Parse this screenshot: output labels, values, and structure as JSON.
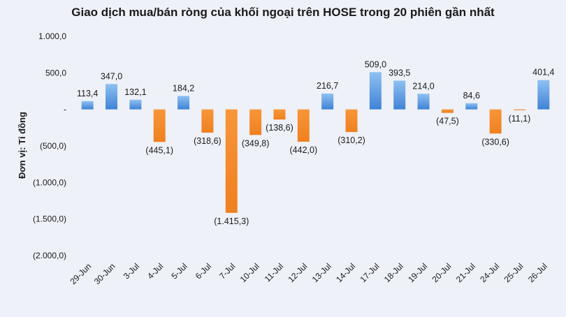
{
  "chart_data": {
    "type": "bar",
    "title": "Giao dịch mua/bán ròng của khối ngoại trên HOSE trong 20 phiên gần nhất",
    "ylabel": "Đơn vị: Tỉ đồng",
    "xlabel": "",
    "ylim": [
      -2000,
      1000
    ],
    "yticks": [
      1000,
      500,
      0,
      -500,
      -1000,
      -1500,
      -2000
    ],
    "ytick_labels": [
      "1.000,0",
      "500,0",
      "-",
      "(500,0)",
      "(1.000,0)",
      "(1.500,0)",
      "(2.000,0)"
    ],
    "grid": false,
    "legend": "none",
    "categories": [
      "29-Jun",
      "30-Jun",
      "3-Jul",
      "4-Jul",
      "5-Jul",
      "6-Jul",
      "7-Jul",
      "10-Jul",
      "11-Jul",
      "12-Jul",
      "13-Jul",
      "14-Jul",
      "17-Jul",
      "18-Jul",
      "19-Jul",
      "20-Jul",
      "21-Jul",
      "24-Jul",
      "25-Jul",
      "26-Jul"
    ],
    "values": [
      113.4,
      347.0,
      132.1,
      -445.1,
      184.2,
      -318.6,
      -1415.3,
      -349.8,
      -138.6,
      -442.0,
      216.7,
      -310.2,
      509.0,
      393.5,
      214.0,
      -47.5,
      84.6,
      -330.6,
      -11.1,
      401.4
    ],
    "value_labels": [
      "113,4",
      "347,0",
      "132,1",
      "(445,1)",
      "184,2",
      "(318,6)",
      "(1.415,3)",
      "(349,8)",
      "(138,6)",
      "(442,0)",
      "216,7",
      "(310,2)",
      "509,0",
      "393,5",
      "214,0",
      "(47,5)",
      "84,6",
      "(330,6)",
      "(11,1)",
      "401,4"
    ],
    "colors": {
      "positive": "#4a8fdc",
      "negative": "#f4882c"
    }
  }
}
